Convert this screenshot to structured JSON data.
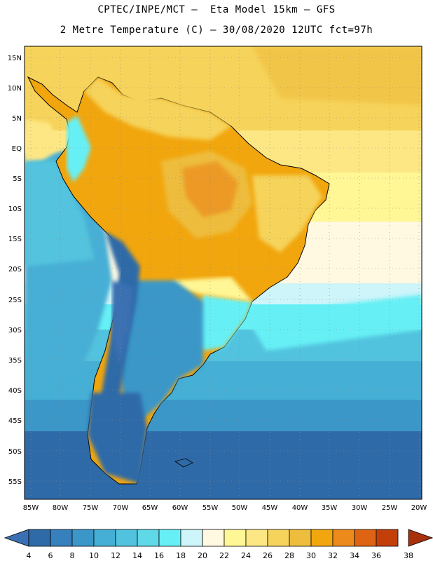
{
  "header": {
    "line1": "CPTEC/INPE/MCT –  Eta Model 15km – GFS",
    "line2": "2 Metre Temperature (C) – 30/08/2020 12UTC fct=97h"
  },
  "map": {
    "lat_labels": [
      "15N",
      "10N",
      "5N",
      "EQ",
      "5S",
      "10S",
      "15S",
      "20S",
      "25S",
      "30S",
      "35S",
      "40S",
      "45S",
      "50S",
      "55S"
    ],
    "lon_labels": [
      "85W",
      "80W",
      "75W",
      "70W",
      "65W",
      "60W",
      "55W",
      "50W",
      "45W",
      "40W",
      "35W",
      "30W",
      "25W",
      "20W"
    ]
  },
  "colorbar": {
    "ticks": [
      "4",
      "6",
      "8",
      "10",
      "12",
      "14",
      "16",
      "18",
      "20",
      "22",
      "24",
      "26",
      "28",
      "30",
      "32",
      "34",
      "36",
      "38"
    ],
    "colors": [
      "#3a70b3",
      "#2f6aa8",
      "#3680be",
      "#3b97c8",
      "#46afd5",
      "#52c3de",
      "#5fd8e8",
      "#66f0f5",
      "#cdf5fa",
      "#fff9e2",
      "#fff695",
      "#fde784",
      "#f6d35a",
      "#eebd3e",
      "#f1a60d",
      "#ec8b1b",
      "#de6313",
      "#c23f0a",
      "#a8310b"
    ],
    "left_arrow": "#3a70b3",
    "right_arrow": "#a8310b"
  }
}
